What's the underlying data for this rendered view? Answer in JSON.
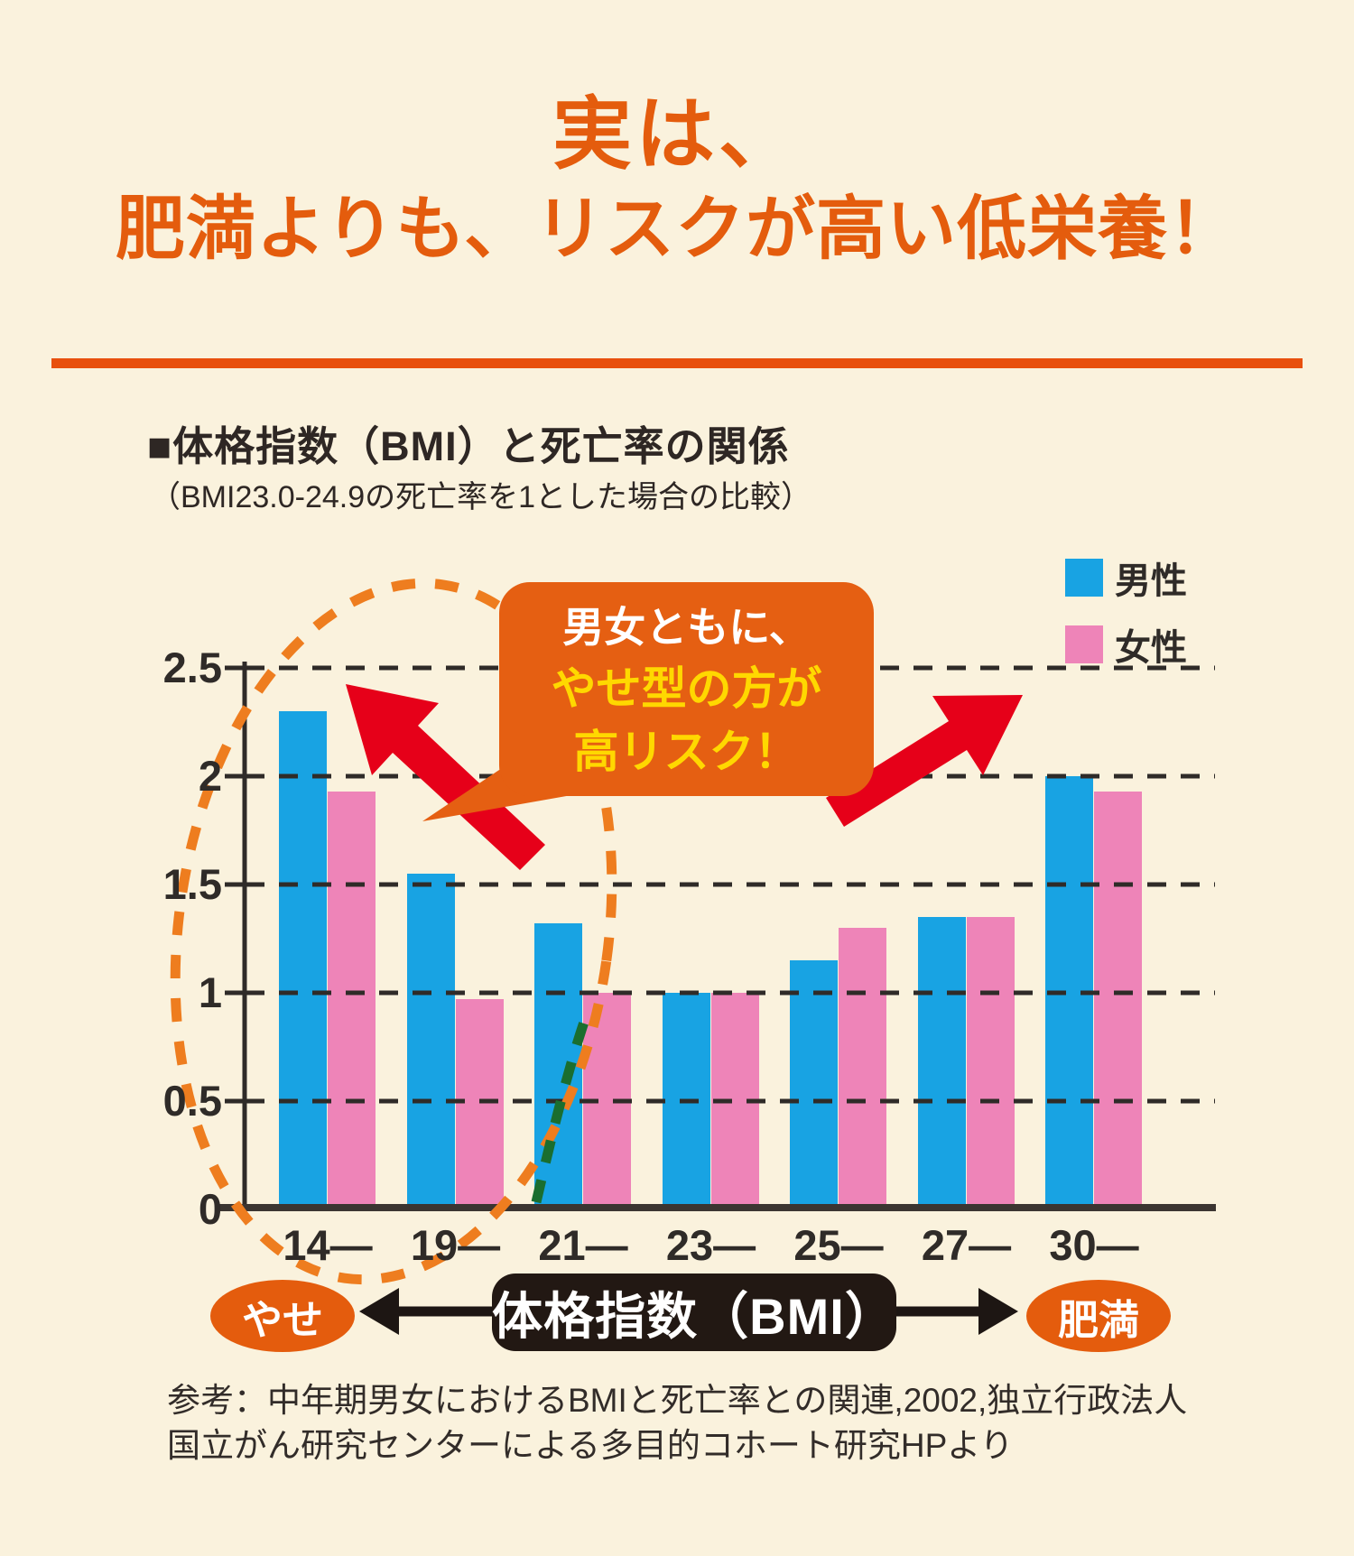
{
  "title": {
    "line1": "実は、",
    "line2": "肥満よりも、リスクが高い低栄養！",
    "color": "#e45c0d"
  },
  "chart": {
    "heading": "■体格指数（BMI）と死亡率の関係",
    "subheading": "（BMI23.0-24.9の死亡率を1とした場合の比較）",
    "legend": [
      {
        "label": "男性",
        "color": "#18a3e3"
      },
      {
        "label": "女性",
        "color": "#ee84b8"
      }
    ]
  },
  "chart_data": {
    "type": "bar",
    "categories": [
      "14—",
      "19—",
      "21—",
      "23—",
      "25—",
      "27—",
      "30—"
    ],
    "series": [
      {
        "name": "男性",
        "color": "#18a3e3",
        "values": [
          2.3,
          1.55,
          1.32,
          1.0,
          1.15,
          1.35,
          2.0
        ]
      },
      {
        "name": "女性",
        "color": "#ee84b8",
        "values": [
          1.93,
          0.97,
          1.0,
          1.0,
          1.3,
          1.35,
          1.93
        ]
      }
    ],
    "yticks": [
      0,
      0.5,
      1,
      1.5,
      2,
      2.5
    ],
    "ylim": [
      0,
      2.5
    ],
    "baseline_value_note": "BMI23.0-24.9の死亡率を1とした相対値",
    "grid": "horizontal dashed",
    "legend_position": "top-right",
    "title": "体格指数（BMI）と死亡率の関係",
    "xlabel": "体格指数（BMI）",
    "ylabel": ""
  },
  "callout": {
    "line1": "男女ともに、",
    "line2": "やせ型の方が",
    "line3": "高リスク！",
    "bg_color": "#e55f12",
    "line1_color": "#ffffff",
    "accent_color": "#ffd800"
  },
  "banner": {
    "left_label": "やせ",
    "center_label": "体格指数（BMI）",
    "right_label": "肥満",
    "oval_color": "#e45c0d",
    "box_color": "#221813"
  },
  "footnote": {
    "line1": "参考：中年期男女におけるBMIと死亡率との関連,2002,独立行政法人",
    "line2": "国立がん研究センターによる多目的コホート研究HPより"
  },
  "colors": {
    "background": "#faf2dd",
    "divider": "#e8500e",
    "male_bar": "#18a3e3",
    "female_bar": "#ee84b8",
    "red_arrow": "#e60019",
    "ellipse_dash": "#ee7d1f",
    "green_dash": "#1a6e2f",
    "grid": "#2f2b28"
  }
}
